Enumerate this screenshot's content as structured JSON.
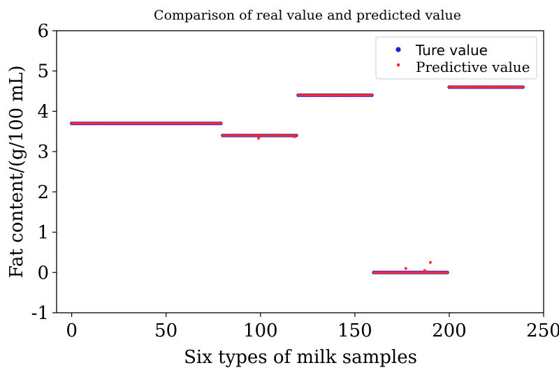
{
  "chart_data": {
    "type": "scatter",
    "title": "Comparison of real value and predicted value",
    "xlabel": "Six types of milk samples",
    "ylabel": "Fat content/(g/100 mL)",
    "xlim": [
      -8,
      250
    ],
    "ylim": [
      -1,
      6
    ],
    "xticks": [
      "0",
      "50",
      "100",
      "150",
      "200",
      "250"
    ],
    "yticks": [
      "-1",
      "0",
      "1",
      "2",
      "3",
      "4",
      "5",
      "6"
    ],
    "grid": false,
    "legend_position": "top-right",
    "series": [
      {
        "name": "Ture value",
        "color": "#1f1fd8",
        "marker": "circle",
        "segments": [
          {
            "x_start": 0,
            "x_end": 79,
            "y": 3.7
          },
          {
            "x_start": 80,
            "x_end": 119,
            "y": 3.4
          },
          {
            "x_start": 120,
            "x_end": 159,
            "y": 4.4
          },
          {
            "x_start": 160,
            "x_end": 199,
            "y": 0
          },
          {
            "x_start": 200,
            "x_end": 239,
            "y": 4.6
          }
        ]
      },
      {
        "name": "Predictive value",
        "color": "#ff2a2a",
        "marker": "square",
        "segments": [
          {
            "x_start": 0,
            "x_end": 79,
            "y": 3.7
          },
          {
            "x_start": 80,
            "x_end": 119,
            "y": 3.4
          },
          {
            "x_start": 120,
            "x_end": 159,
            "y": 4.4
          },
          {
            "x_start": 160,
            "x_end": 199,
            "y": 0.0
          },
          {
            "x_start": 200,
            "x_end": 239,
            "y": 4.6
          }
        ],
        "outliers": [
          {
            "x": 99,
            "y": 3.33
          },
          {
            "x": 118,
            "y": 3.37
          },
          {
            "x": 177,
            "y": 0.1
          },
          {
            "x": 187,
            "y": 0.05
          },
          {
            "x": 190,
            "y": 0.25
          }
        ]
      }
    ]
  }
}
